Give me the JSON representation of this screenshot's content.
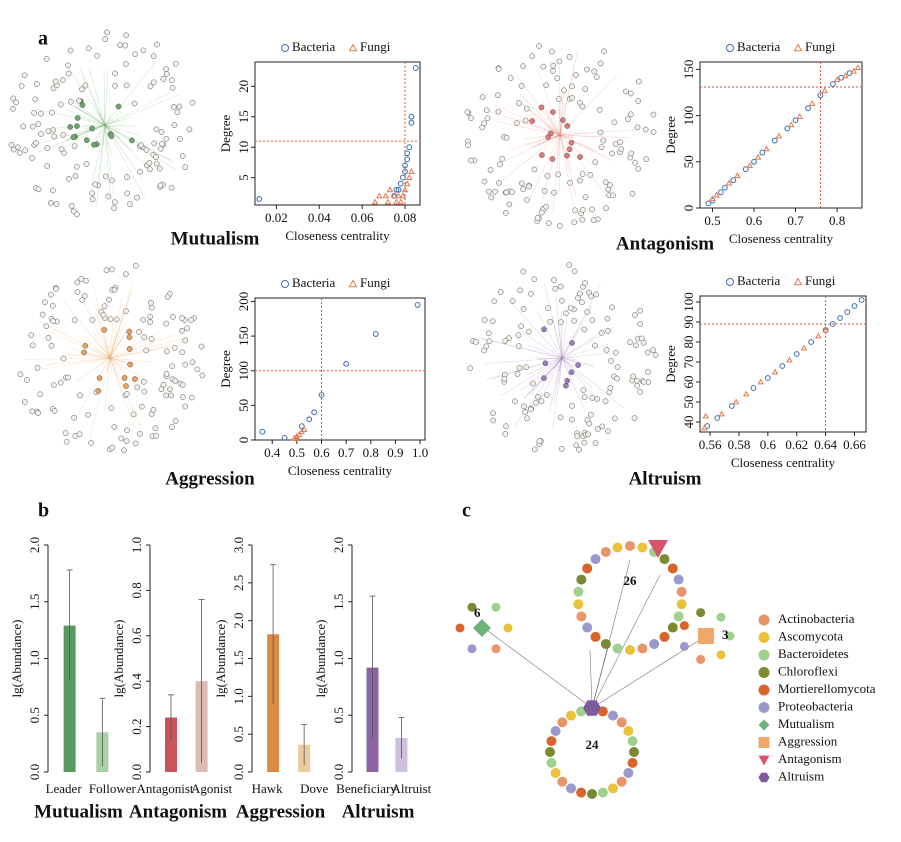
{
  "panels": [
    "a",
    "b",
    "c"
  ],
  "chart_data": [
    {
      "type": "scatter",
      "title": "Mutualism",
      "xlabel": "Closeness centrality",
      "ylabel": "Degree",
      "xlim": [
        0.01,
        0.087
      ],
      "ylim": [
        0.5,
        24
      ],
      "xticks": [
        0.02,
        0.04,
        0.06,
        0.08
      ],
      "yticks": [
        5,
        10,
        15,
        20
      ],
      "reference_lines": {
        "x": 0.08,
        "y": 11
      },
      "reference_color": "#e0552e",
      "series": [
        {
          "name": "Bacteria",
          "marker": "circle",
          "color": "#3c6db4",
          "x": [
            0.012,
            0.075,
            0.076,
            0.077,
            0.078,
            0.079,
            0.08,
            0.08,
            0.081,
            0.081,
            0.082,
            0.083,
            0.083,
            0.085
          ],
          "values": [
            1.5,
            2,
            3,
            3,
            4,
            5,
            6,
            7,
            8,
            9,
            10,
            14,
            15,
            23
          ]
        },
        {
          "name": "Fungi",
          "marker": "triangle",
          "color": "#e2784f",
          "x": [
            0.066,
            0.068,
            0.071,
            0.072,
            0.073,
            0.075,
            0.076,
            0.077,
            0.078,
            0.079,
            0.08,
            0.081,
            0.082,
            0.083
          ],
          "values": [
            1,
            2,
            2,
            1,
            3,
            2,
            1,
            2,
            1,
            2,
            3,
            4,
            5,
            6
          ]
        }
      ]
    },
    {
      "type": "scatter",
      "title": "Antagonism",
      "xlabel": "Closeness centrality",
      "ylabel": "Degree",
      "xlim": [
        0.47,
        0.86
      ],
      "ylim": [
        0,
        158
      ],
      "xticks": [
        0.5,
        0.6,
        0.7,
        0.8
      ],
      "yticks": [
        0,
        50,
        100,
        150
      ],
      "reference_lines": {
        "x": 0.76,
        "y": 131
      },
      "reference_color": "#e0552e",
      "series": [
        {
          "name": "Bacteria",
          "marker": "circle",
          "color": "#3c6db4",
          "x": [
            0.49,
            0.5,
            0.52,
            0.53,
            0.55,
            0.58,
            0.6,
            0.62,
            0.65,
            0.68,
            0.7,
            0.73,
            0.76,
            0.79,
            0.81,
            0.83
          ],
          "values": [
            5,
            8,
            17,
            22,
            30,
            42,
            50,
            60,
            73,
            86,
            95,
            108,
            122,
            134,
            141,
            146
          ]
        },
        {
          "name": "Fungi",
          "marker": "triangle",
          "color": "#e2784f",
          "x": [
            0.5,
            0.51,
            0.54,
            0.56,
            0.59,
            0.61,
            0.63,
            0.66,
            0.69,
            0.71,
            0.74,
            0.77,
            0.8,
            0.82,
            0.84,
            0.85
          ],
          "values": [
            10,
            14,
            27,
            35,
            46,
            55,
            64,
            78,
            90,
            99,
            113,
            127,
            139,
            143,
            148,
            152
          ]
        }
      ]
    },
    {
      "type": "scatter",
      "title": "Aggression",
      "xlabel": "Closeness centrality",
      "ylabel": "Degree",
      "xlim": [
        0.33,
        1.02
      ],
      "ylim": [
        0,
        205
      ],
      "xticks": [
        0.4,
        0.5,
        0.6,
        0.7,
        0.8,
        0.9,
        {
          "value": 1,
          "label": "1.0"
        }
      ],
      "yticks": [
        0,
        50,
        100,
        150,
        200
      ],
      "reference_lines": {
        "x": 0.6,
        "y": 100
      },
      "reference_color": "#e0552e",
      "series": [
        {
          "name": "Bacteria",
          "marker": "circle",
          "color": "#3c6db4",
          "x": [
            0.36,
            0.45,
            0.52,
            0.55,
            0.57,
            0.6,
            0.7,
            0.82,
            0.99
          ],
          "values": [
            12,
            3,
            20,
            30,
            40,
            65,
            110,
            153,
            195
          ]
        },
        {
          "name": "Fungi",
          "marker": "triangle",
          "color": "#e2784f",
          "x": [
            0.49,
            0.5,
            0.5,
            0.51,
            0.52,
            0.53
          ],
          "values": [
            3,
            2,
            5,
            8,
            12,
            15
          ]
        }
      ]
    },
    {
      "type": "scatter",
      "title": "Altruism",
      "xlabel": "Closeness centrality",
      "ylabel": "Degree",
      "xlim": [
        0.553,
        0.668
      ],
      "ylim": [
        35,
        103
      ],
      "xticks": [
        0.56,
        0.58,
        0.6,
        0.62,
        0.64,
        0.66
      ],
      "yticks": [
        40,
        50,
        60,
        70,
        80,
        90,
        100
      ],
      "reference_lines": {
        "x": 0.64,
        "y": 89
      },
      "reference_color": "#e0552e",
      "series": [
        {
          "name": "Bacteria",
          "marker": "circle",
          "color": "#3c6db4",
          "x": [
            0.558,
            0.565,
            0.575,
            0.59,
            0.6,
            0.61,
            0.62,
            0.63,
            0.64,
            0.645,
            0.65,
            0.655,
            0.66,
            0.665
          ],
          "values": [
            38,
            42,
            48,
            57,
            62,
            68,
            74,
            80,
            86,
            89,
            92,
            95,
            98,
            101
          ]
        },
        {
          "name": "Fungi",
          "marker": "triangle",
          "color": "#e2784f",
          "x": [
            0.556,
            0.557,
            0.568,
            0.578,
            0.585,
            0.595,
            0.605,
            0.615,
            0.625,
            0.635,
            0.64
          ],
          "values": [
            37,
            43,
            44,
            50,
            54,
            60,
            65,
            71,
            77,
            83,
            86
          ]
        }
      ]
    },
    {
      "type": "bar",
      "title": "Mutualism",
      "ylabel": "lg(Abundance)",
      "categories": [
        "Leader",
        "Follower"
      ],
      "values": [
        1.29,
        0.35
      ],
      "errors": [
        0.49,
        0.3
      ],
      "colors": [
        "#5a9a5e",
        "#a9cfa6"
      ],
      "ylim": [
        0,
        2
      ],
      "yticks": [
        {
          "value": 0,
          "label": "0.0"
        },
        0.5,
        {
          "value": 1,
          "label": "1.0"
        },
        1.5,
        {
          "value": 2,
          "label": "2.0"
        }
      ]
    },
    {
      "type": "bar",
      "title": "Antagonism",
      "ylabel": "lg(Abundance)",
      "categories": [
        "Antagonist",
        "Agonist"
      ],
      "values": [
        0.24,
        0.4
      ],
      "errors": [
        0.1,
        0.36
      ],
      "colors": [
        "#c9555a",
        "#dcbcb2"
      ],
      "ylim": [
        0,
        1
      ],
      "yticks": [
        {
          "value": 0,
          "label": "0.0"
        },
        0.2,
        0.4,
        0.6,
        0.8,
        {
          "value": 1,
          "label": "1.0"
        }
      ]
    },
    {
      "type": "bar",
      "title": "Aggression",
      "ylabel": "lg(Abundance)",
      "categories": [
        "Hawk",
        "Dove"
      ],
      "values": [
        1.82,
        0.36
      ],
      "errors": [
        0.92,
        0.27
      ],
      "colors": [
        "#d98a45",
        "#edcba0"
      ],
      "ylim": [
        0,
        3
      ],
      "yticks": [
        {
          "value": 0,
          "label": "0.0"
        },
        0.5,
        {
          "value": 1,
          "label": "1.0"
        },
        1.5,
        {
          "value": 2,
          "label": "2.0"
        },
        2.5,
        {
          "value": 3,
          "label": "3.0"
        }
      ]
    },
    {
      "type": "bar",
      "title": "Altruism",
      "ylabel": "lg(Abundance)",
      "categories": [
        "Beneficiary",
        "Altruist"
      ],
      "values": [
        0.92,
        0.3
      ],
      "errors": [
        0.63,
        0.18
      ],
      "colors": [
        "#8b64a5",
        "#cfc0de"
      ],
      "ylim": [
        0,
        2
      ],
      "yticks": [
        {
          "value": 0,
          "label": "0.0"
        },
        0.5,
        {
          "value": 1,
          "label": "1.0"
        },
        1.5,
        {
          "value": 2,
          "label": "2.0"
        }
      ]
    }
  ],
  "network": {
    "groups": [
      {
        "label": "26"
      },
      {
        "label": "6"
      },
      {
        "label": "3"
      },
      {
        "label": "24"
      }
    ],
    "legend": [
      {
        "label": "Actinobacteria",
        "shape": "circle",
        "color": "#e8956c"
      },
      {
        "label": "Ascomycota",
        "shape": "circle",
        "color": "#e9c23a"
      },
      {
        "label": "Bacteroidetes",
        "shape": "circle",
        "color": "#9fd08e"
      },
      {
        "label": "Chloroflexi",
        "shape": "circle",
        "color": "#7a8a30"
      },
      {
        "label": "Mortierellomycota",
        "shape": "circle",
        "color": "#d8642a"
      },
      {
        "label": "Proteobacteria",
        "shape": "circle",
        "color": "#9b98cc"
      },
      {
        "label": "Mutualism",
        "shape": "diamond",
        "color": "#6db37a"
      },
      {
        "label": "Aggression",
        "shape": "square",
        "color": "#f0a86a"
      },
      {
        "label": "Antagonism",
        "shape": "triangle",
        "color": "#d9536a"
      },
      {
        "label": "Altruism",
        "shape": "hexagon",
        "color": "#7d5a9b"
      }
    ]
  }
}
